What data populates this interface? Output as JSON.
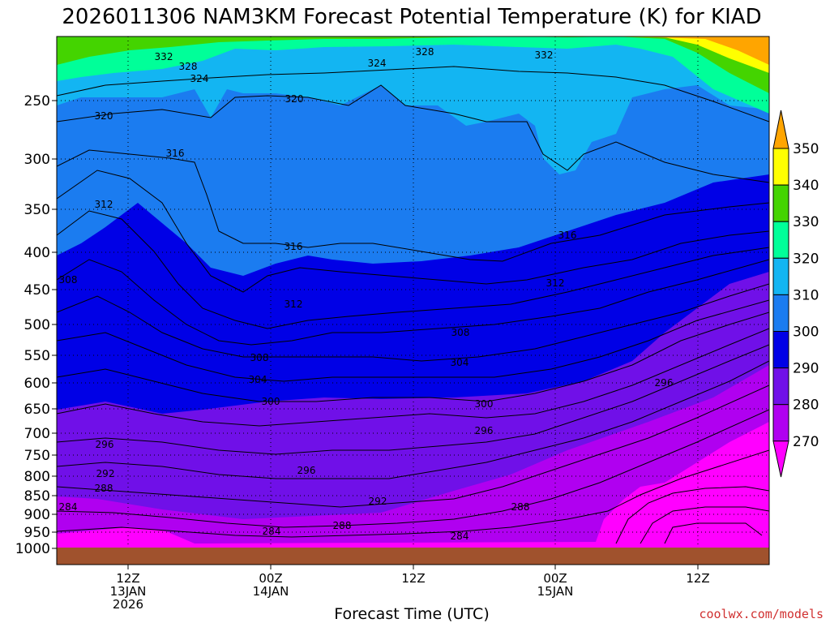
{
  "chart_data": {
    "type": "contour",
    "title": "2026011306 NAM3KM Forecast Potential Temperature (K) for KIAD",
    "xlabel": "Forecast Time (UTC)",
    "credit": "coolwx.com/models",
    "y_ticks": [
      "250",
      "300",
      "350",
      "400",
      "450",
      "500",
      "550",
      "600",
      "650",
      "700",
      "750",
      "800",
      "850",
      "900",
      "950",
      "1000"
    ],
    "x_ticks": [
      {
        "line1": "12Z",
        "line2": "13JAN",
        "line3": "2026",
        "hour": 6
      },
      {
        "line1": "00Z",
        "line2": "14JAN",
        "line3": "",
        "hour": 18
      },
      {
        "line1": "12Z",
        "line2": "",
        "line3": "",
        "hour": 30
      },
      {
        "line1": "00Z",
        "line2": "15JAN",
        "line3": "",
        "hour": 42
      },
      {
        "line1": "12Z",
        "line2": "",
        "line3": "",
        "hour": 54
      }
    ],
    "x_range_hours": [
      0,
      60
    ],
    "colorbar": {
      "labels": [
        "350",
        "340",
        "330",
        "320",
        "310",
        "300",
        "290",
        "280",
        "270"
      ],
      "colors": [
        "#ffa500",
        "#ffff00",
        "#44d400",
        "#00ff99",
        "#13b5f2",
        "#1b7cf0",
        "#0000e6",
        "#7010e8",
        "#b000f0",
        "#ff00ff"
      ]
    },
    "contour_labels": [
      {
        "text": "332"
      },
      {
        "text": "328"
      },
      {
        "text": "324"
      },
      {
        "text": "324"
      },
      {
        "text": "328"
      },
      {
        "text": "332"
      },
      {
        "text": "320"
      },
      {
        "text": "320"
      },
      {
        "text": "316"
      },
      {
        "text": "312"
      },
      {
        "text": "316"
      },
      {
        "text": "316"
      },
      {
        "text": "308"
      },
      {
        "text": "312"
      },
      {
        "text": "312"
      },
      {
        "text": "308"
      },
      {
        "text": "308"
      },
      {
        "text": "304"
      },
      {
        "text": "304"
      },
      {
        "text": "300"
      },
      {
        "text": "300"
      },
      {
        "text": "296"
      },
      {
        "text": "296"
      },
      {
        "text": "296"
      },
      {
        "text": "292"
      },
      {
        "text": "292"
      },
      {
        "text": "288"
      },
      {
        "text": "288"
      },
      {
        "text": "288"
      },
      {
        "text": "284"
      },
      {
        "text": "284"
      },
      {
        "text": "284"
      },
      {
        "text": "296"
      }
    ]
  }
}
